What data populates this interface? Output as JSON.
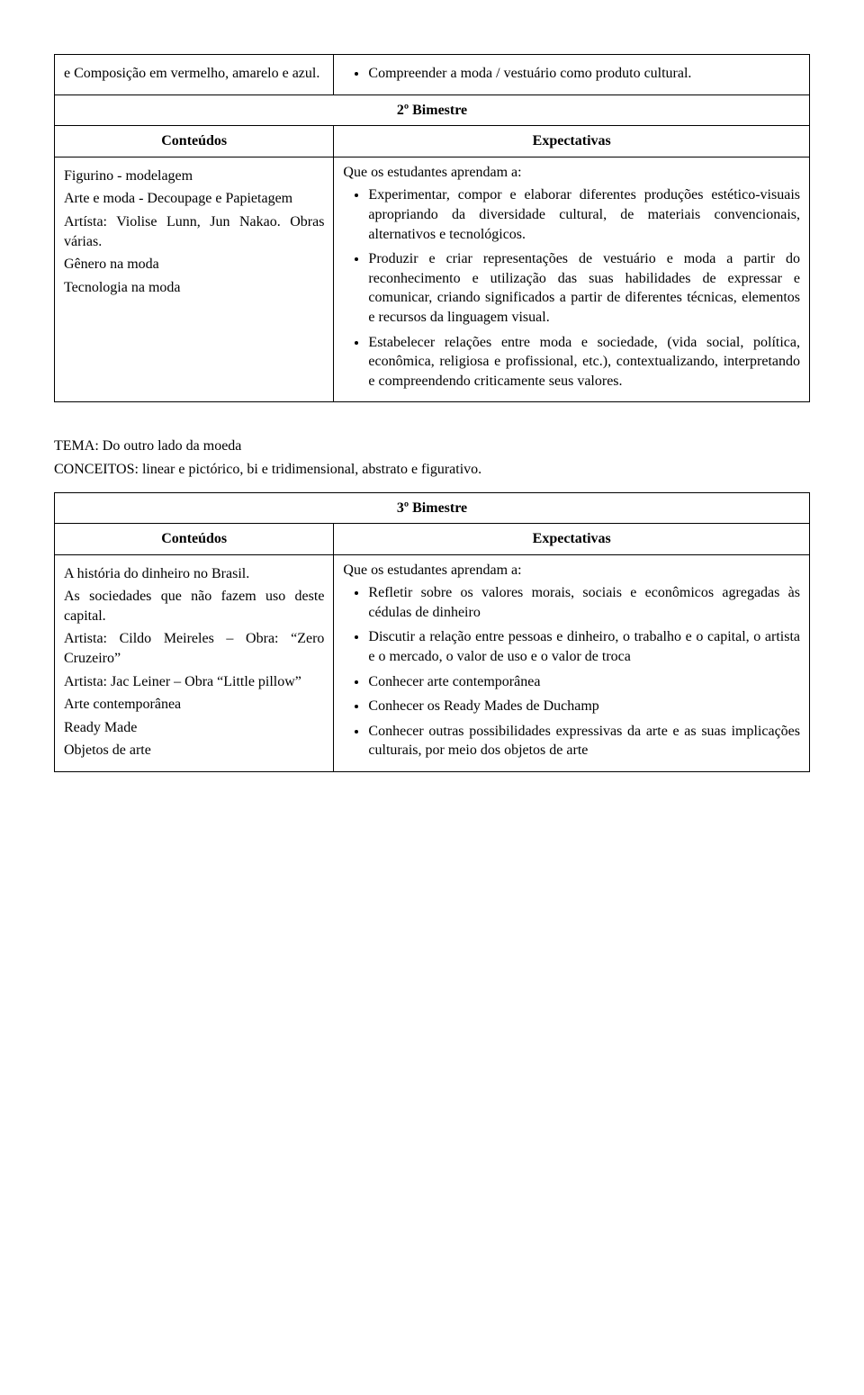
{
  "top_row": {
    "left": "e Composição em vermelho, amarelo e azul.",
    "right_bullet": "Compreender a moda / vestuário como produto cultural."
  },
  "bim2": {
    "title": "2º Bimestre",
    "conteudos_header": "Conteúdos",
    "expect_header": "Expectativas",
    "left_text": "Figurino - modelagem\nArte e moda - Decoupage e Papietagem\nArtísta: Violise Lunn, Jun Nakao. Obras várias.\nGênero na moda\nTecnologia na moda",
    "right_intro": "Que os estudantes aprendam a:",
    "right_bullets": [
      "Experimentar, compor e elaborar diferentes produções estético-visuais apropriando da diversidade cultural, de materiais convencionais, alternativos e tecnológicos.",
      "Produzir e criar representações de vestuário e moda a partir do reconhecimento e utilização das suas habilidades de expressar e comunicar, criando significados a partir de diferentes técnicas, elementos e recursos da linguagem visual.",
      "Estabelecer relações entre moda e sociedade, (vida social, política, econômica, religiosa e profissional, etc.), contextualizando, interpretando e compreendendo criticamente seus valores."
    ]
  },
  "mid": {
    "tema": "TEMA: Do outro lado da moeda",
    "conceitos": "CONCEITOS: linear e pictórico, bi e tridimensional, abstrato e figurativo."
  },
  "bim3": {
    "title": "3º Bimestre",
    "conteudos_header": "Conteúdos",
    "expect_header": "Expectativas",
    "left_text": "A história do dinheiro no Brasil.\nAs sociedades que não fazem uso deste capital.\nArtista: Cildo Meireles – Obra: “Zero Cruzeiro”\nArtista: Jac Leiner – Obra “Little pillow”\nArte contemporânea\nReady Made\nObjetos de arte",
    "right_intro": "Que os estudantes aprendam a:",
    "right_bullets": [
      "Refletir sobre os valores morais, sociais e econômicos agregadas às cédulas de dinheiro",
      "Discutir a relação entre pessoas e dinheiro, o trabalho e o capital, o artista e o mercado, o valor de uso e o valor de troca",
      "Conhecer arte contemporânea",
      "Conhecer os Ready Mades de Duchamp",
      "Conhecer outras possibilidades expressivas da arte e as suas implicações culturais, por meio dos objetos de arte"
    ]
  }
}
